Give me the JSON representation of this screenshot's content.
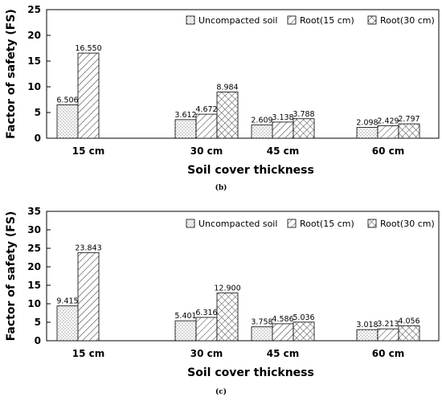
{
  "chart_data": [
    {
      "type": "bar",
      "caption": "(b)",
      "xlabel": "Soil cover thickness",
      "ylabel": "Factor of safety (FS)",
      "categories": [
        "15 cm",
        "30 cm",
        "45 cm",
        "60 cm"
      ],
      "ylim": [
        0,
        25
      ],
      "yticks": [
        0,
        5,
        10,
        15,
        20,
        25
      ],
      "legend_position": "top-right",
      "series": [
        {
          "name": "Uncompacted soil",
          "pattern": "dots",
          "values": [
            6.506,
            3.612,
            2.609,
            2.098
          ],
          "labels": [
            "6.506",
            "3.612",
            "2.609",
            "2.098"
          ]
        },
        {
          "name": "Root(15 cm)",
          "pattern": "diagonal",
          "values": [
            16.55,
            4.672,
            3.138,
            2.429
          ],
          "labels": [
            "16.550",
            "4.672",
            "3.138",
            "2.429"
          ]
        },
        {
          "name": "Root(30 cm)",
          "pattern": "crosshatch",
          "values": [
            null,
            8.984,
            3.788,
            2.797
          ],
          "labels": [
            null,
            "8.984",
            "3.788",
            "2.797"
          ]
        }
      ]
    },
    {
      "type": "bar",
      "caption": "(c)",
      "xlabel": "Soil cover thickness",
      "ylabel": "Factor of safety (FS)",
      "categories": [
        "15 cm",
        "30 cm",
        "45 cm",
        "60 cm"
      ],
      "ylim": [
        0,
        35
      ],
      "yticks": [
        0,
        5,
        10,
        15,
        20,
        25,
        30,
        35
      ],
      "legend_position": "top-right",
      "series": [
        {
          "name": "Uncompacted soil",
          "pattern": "dots",
          "values": [
            9.415,
            5.401,
            3.758,
            3.018
          ],
          "labels": [
            "9.415",
            "5.401",
            "3.758",
            "3.018"
          ]
        },
        {
          "name": "Root(15 cm)",
          "pattern": "diagonal",
          "values": [
            23.843,
            6.316,
            4.586,
            3.213
          ],
          "labels": [
            "23.843",
            "6.316",
            "4.586",
            "3.213"
          ]
        },
        {
          "name": "Root(30 cm)",
          "pattern": "crosshatch",
          "values": [
            null,
            12.9,
            5.036,
            4.056
          ],
          "labels": [
            null,
            "12.900",
            "5.036",
            "4.056"
          ]
        }
      ]
    }
  ]
}
